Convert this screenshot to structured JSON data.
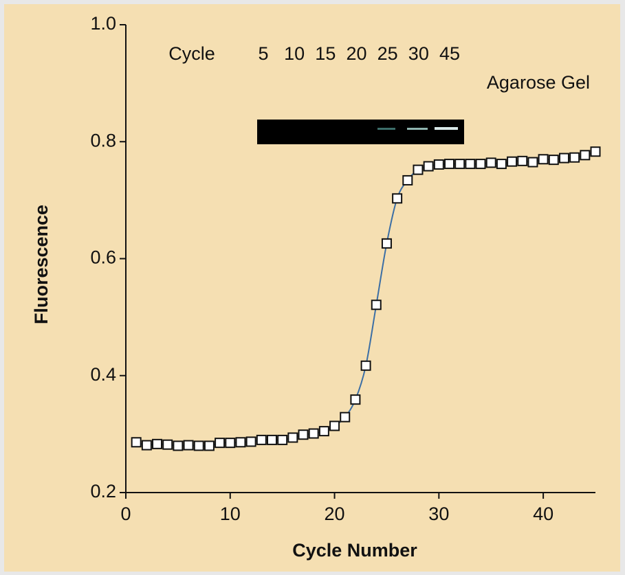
{
  "chart_data": {
    "type": "scatter",
    "x_label": "Cycle Number",
    "y_label": "Fluorescence",
    "x": [
      1,
      2,
      3,
      4,
      5,
      6,
      7,
      8,
      9,
      10,
      11,
      12,
      13,
      14,
      15,
      16,
      17,
      18,
      19,
      20,
      21,
      22,
      23,
      24,
      25,
      26,
      27,
      28,
      29,
      30,
      31,
      32,
      33,
      34,
      35,
      36,
      37,
      38,
      39,
      40,
      41,
      42,
      43,
      44,
      45
    ],
    "values": [
      0.286,
      0.281,
      0.283,
      0.282,
      0.28,
      0.281,
      0.28,
      0.28,
      0.285,
      0.285,
      0.286,
      0.287,
      0.29,
      0.29,
      0.29,
      0.294,
      0.299,
      0.301,
      0.305,
      0.314,
      0.329,
      0.359,
      0.417,
      0.521,
      0.626,
      0.703,
      0.734,
      0.752,
      0.758,
      0.761,
      0.762,
      0.762,
      0.762,
      0.762,
      0.764,
      0.762,
      0.766,
      0.767,
      0.765,
      0.77,
      0.769,
      0.772,
      0.773,
      0.777,
      0.783
    ],
    "marker_color": "#ffffff",
    "line_color": "#3b6ea5",
    "xlim": [
      0,
      45
    ],
    "xticks": [
      0,
      10,
      20,
      30,
      40
    ],
    "ylim": [
      0.2,
      1.0
    ],
    "yticks": [
      0.2,
      0.4,
      0.6,
      0.8,
      {
        "value": 1.0,
        "label": "1.0"
      }
    ],
    "gel": {
      "cycle_label": "Cycle",
      "cycles": [
        5,
        10,
        15,
        20,
        25,
        30,
        45
      ],
      "title": "Agarose Gel"
    }
  }
}
